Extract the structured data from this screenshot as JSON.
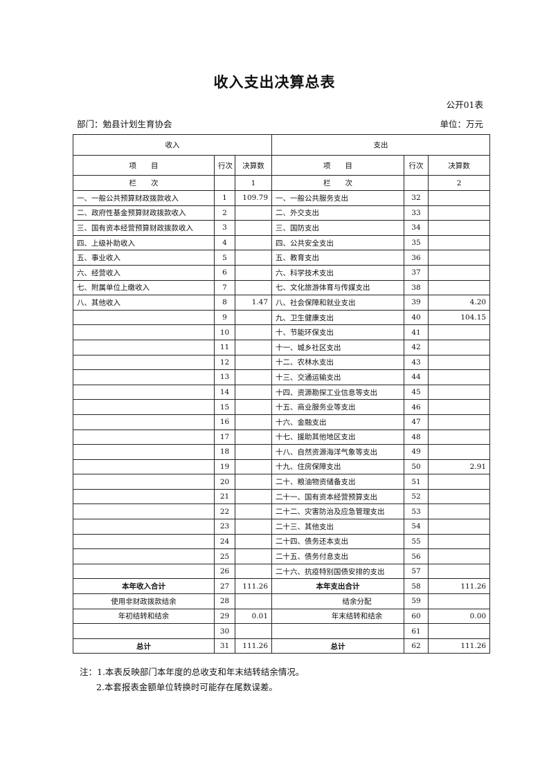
{
  "title": "收入支出决算总表",
  "form_no": "公开01表",
  "department": "部门：勉县计划生育协会",
  "unit": "单位：万元",
  "header": {
    "income": "收入",
    "expense": "支出",
    "item": "项　　目",
    "line": "行次",
    "amount": "决算数",
    "column_label": "栏　　次",
    "income_col_no": "1",
    "expense_col_no": "2"
  },
  "rows": [
    {
      "inc_item": "一、一般公共预算财政拨款收入",
      "inc_line": "1",
      "inc_amt": "109.79",
      "exp_item": "一、一般公共服务支出",
      "exp_line": "32",
      "exp_amt": ""
    },
    {
      "inc_item": "二、政府性基金预算财政拨款收入",
      "inc_line": "2",
      "inc_amt": "",
      "exp_item": "二、外交支出",
      "exp_line": "33",
      "exp_amt": ""
    },
    {
      "inc_item": "三、国有资本经营预算财政拨款收入",
      "inc_line": "3",
      "inc_amt": "",
      "exp_item": "三、国防支出",
      "exp_line": "34",
      "exp_amt": ""
    },
    {
      "inc_item": "四、上级补助收入",
      "inc_line": "4",
      "inc_amt": "",
      "exp_item": "四、公共安全支出",
      "exp_line": "35",
      "exp_amt": ""
    },
    {
      "inc_item": "五、事业收入",
      "inc_line": "5",
      "inc_amt": "",
      "exp_item": "五、教育支出",
      "exp_line": "36",
      "exp_amt": ""
    },
    {
      "inc_item": "六、经营收入",
      "inc_line": "6",
      "inc_amt": "",
      "exp_item": "六、科学技术支出",
      "exp_line": "37",
      "exp_amt": ""
    },
    {
      "inc_item": "七、附属单位上缴收入",
      "inc_line": "7",
      "inc_amt": "",
      "exp_item": "七、文化旅游体育与传媒支出",
      "exp_line": "38",
      "exp_amt": ""
    },
    {
      "inc_item": "八、其他收入",
      "inc_line": "8",
      "inc_amt": "1.47",
      "exp_item": "八、社会保障和就业支出",
      "exp_line": "39",
      "exp_amt": "4.20"
    },
    {
      "inc_item": "",
      "inc_line": "9",
      "inc_amt": "",
      "exp_item": "九、卫生健康支出",
      "exp_line": "40",
      "exp_amt": "104.15"
    },
    {
      "inc_item": "",
      "inc_line": "10",
      "inc_amt": "",
      "exp_item": "十、节能环保支出",
      "exp_line": "41",
      "exp_amt": ""
    },
    {
      "inc_item": "",
      "inc_line": "11",
      "inc_amt": "",
      "exp_item": "十一、城乡社区支出",
      "exp_line": "42",
      "exp_amt": ""
    },
    {
      "inc_item": "",
      "inc_line": "12",
      "inc_amt": "",
      "exp_item": "十二、农林水支出",
      "exp_line": "43",
      "exp_amt": ""
    },
    {
      "inc_item": "",
      "inc_line": "13",
      "inc_amt": "",
      "exp_item": "十三、交通运输支出",
      "exp_line": "44",
      "exp_amt": ""
    },
    {
      "inc_item": "",
      "inc_line": "14",
      "inc_amt": "",
      "exp_item": "十四、资源勘探工业信息等支出",
      "exp_line": "45",
      "exp_amt": ""
    },
    {
      "inc_item": "",
      "inc_line": "15",
      "inc_amt": "",
      "exp_item": "十五、商业服务业等支出",
      "exp_line": "46",
      "exp_amt": ""
    },
    {
      "inc_item": "",
      "inc_line": "16",
      "inc_amt": "",
      "exp_item": "十六、金融支出",
      "exp_line": "47",
      "exp_amt": ""
    },
    {
      "inc_item": "",
      "inc_line": "17",
      "inc_amt": "",
      "exp_item": "十七、援助其他地区支出",
      "exp_line": "48",
      "exp_amt": ""
    },
    {
      "inc_item": "",
      "inc_line": "18",
      "inc_amt": "",
      "exp_item": "十八、自然资源海洋气象等支出",
      "exp_line": "49",
      "exp_amt": ""
    },
    {
      "inc_item": "",
      "inc_line": "19",
      "inc_amt": "",
      "exp_item": "十九、住房保障支出",
      "exp_line": "50",
      "exp_amt": "2.91"
    },
    {
      "inc_item": "",
      "inc_line": "20",
      "inc_amt": "",
      "exp_item": "二十、粮油物资储备支出",
      "exp_line": "51",
      "exp_amt": ""
    },
    {
      "inc_item": "",
      "inc_line": "21",
      "inc_amt": "",
      "exp_item": "二十一、国有资本经营预算支出",
      "exp_line": "52",
      "exp_amt": ""
    },
    {
      "inc_item": "",
      "inc_line": "22",
      "inc_amt": "",
      "exp_item": "二十二、灾害防治及应急管理支出",
      "exp_line": "53",
      "exp_amt": ""
    },
    {
      "inc_item": "",
      "inc_line": "23",
      "inc_amt": "",
      "exp_item": "二十三、其他支出",
      "exp_line": "54",
      "exp_amt": ""
    },
    {
      "inc_item": "",
      "inc_line": "24",
      "inc_amt": "",
      "exp_item": "二十四、债务还本支出",
      "exp_line": "55",
      "exp_amt": ""
    },
    {
      "inc_item": "",
      "inc_line": "25",
      "inc_amt": "",
      "exp_item": "二十五、债务付息支出",
      "exp_line": "56",
      "exp_amt": ""
    },
    {
      "inc_item": "",
      "inc_line": "26",
      "inc_amt": "",
      "exp_item": "二十六、抗疫特别国债安排的支出",
      "exp_line": "57",
      "exp_amt": ""
    },
    {
      "inc_item": "本年收入合计",
      "inc_line": "27",
      "inc_amt": "111.26",
      "exp_item": "本年支出合计",
      "exp_line": "58",
      "exp_amt": "111.26",
      "style": "bold"
    },
    {
      "inc_item": "使用非财政拨款结余",
      "inc_line": "28",
      "inc_amt": "",
      "exp_item": "结余分配",
      "exp_line": "59",
      "exp_amt": "",
      "style": "center"
    },
    {
      "inc_item": "年初结转和结余",
      "inc_line": "29",
      "inc_amt": "0.01",
      "exp_item": "年末结转和结余",
      "exp_line": "60",
      "exp_amt": "0.00",
      "style": "center"
    },
    {
      "inc_item": "",
      "inc_line": "30",
      "inc_amt": "",
      "exp_item": "",
      "exp_line": "61",
      "exp_amt": ""
    },
    {
      "inc_item": "总计",
      "inc_line": "31",
      "inc_amt": "111.26",
      "exp_item": "总计",
      "exp_line": "62",
      "exp_amt": "111.26",
      "style": "bold"
    }
  ],
  "notes": [
    "注：1.本表反映部门本年度的总收支和年末结转结余情况。",
    "2.本套报表金额单位转换时可能存在尾数误差。"
  ]
}
